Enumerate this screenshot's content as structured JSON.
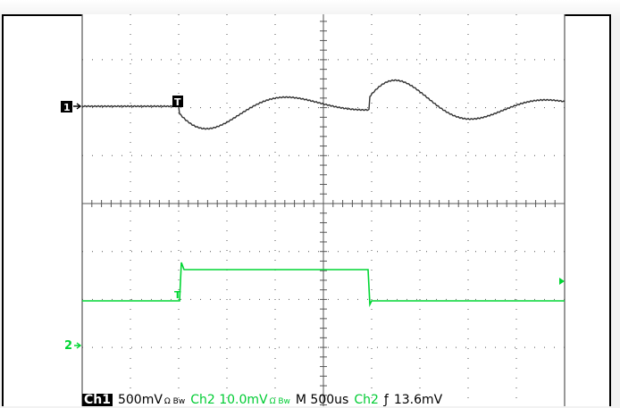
{
  "scope": {
    "ch1_marker": "1",
    "ch2_marker": "2",
    "trigger_marker": "T",
    "colors": {
      "ch1": "#333333",
      "ch2": "#00d633",
      "grid": "#555555",
      "background": "#ffffff"
    }
  },
  "readout": {
    "ch1_label": "Ch1",
    "ch1_scale": "500mV",
    "ch1_coupling": "Ω Bw",
    "ch2_scale": "Ch2   10.0mV",
    "ch2_coupling": "Ω Bw",
    "timebase": "M  500us",
    "trigger_source": "Ch2",
    "trigger_slope": "ƒ",
    "trigger_level": "13.6mV"
  }
}
